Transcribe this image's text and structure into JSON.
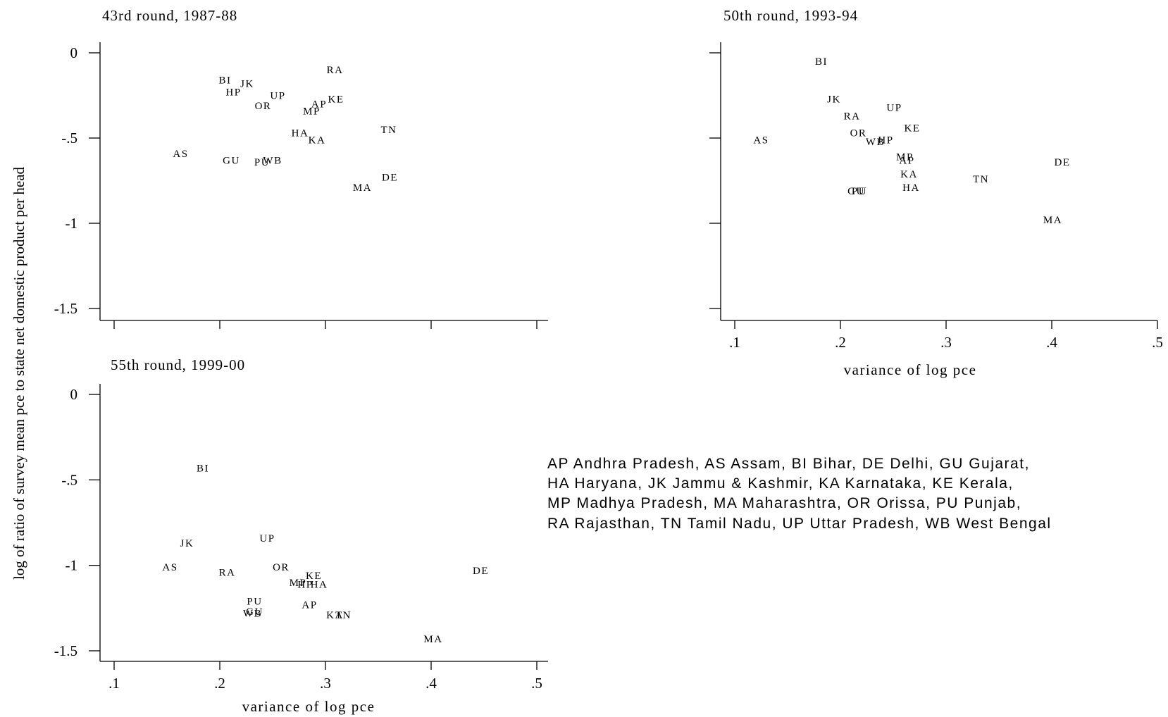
{
  "figure": {
    "ylabel": "log of ratio of survey mean pce to state net domestic product per head",
    "legend_lines": [
      "AP Andhra Pradesh, AS Assam, BI Bihar, DE Delhi, GU Gujarat,",
      "HA Haryana, JK Jammu & Kashmir, KA Karnataka, KE Kerala,",
      "MP Madhya Pradesh, MA Maharashtra, OR Orissa, PU Punjab,",
      "RA Rajasthan, TN Tamil Nadu, UP Uttar Pradesh, WB West Bengal"
    ]
  },
  "chart_data": [
    {
      "type": "scatter",
      "title": "43rd round, 1987-88",
      "xlabel": "",
      "xlim": [
        0.1,
        0.5
      ],
      "ylim": [
        -1.5,
        0
      ],
      "xticks": [
        0.1,
        0.2,
        0.3,
        0.4,
        0.5
      ],
      "xtick_labels": [],
      "yticks": [
        0,
        -0.5,
        -1,
        -1.5
      ],
      "ytick_labels": [
        "0",
        "-.5",
        "-1",
        "-1.5"
      ],
      "points": [
        {
          "label": "BI",
          "x": 0.205,
          "y": -0.16
        },
        {
          "label": "JK",
          "x": 0.226,
          "y": -0.18
        },
        {
          "label": "HP",
          "x": 0.213,
          "y": -0.23
        },
        {
          "label": "UP",
          "x": 0.255,
          "y": -0.25
        },
        {
          "label": "OR",
          "x": 0.241,
          "y": -0.31
        },
        {
          "label": "RA",
          "x": 0.309,
          "y": -0.1
        },
        {
          "label": "AP",
          "x": 0.294,
          "y": -0.3
        },
        {
          "label": "KE",
          "x": 0.31,
          "y": -0.27
        },
        {
          "label": "MP",
          "x": 0.287,
          "y": -0.34
        },
        {
          "label": "TN",
          "x": 0.36,
          "y": -0.45
        },
        {
          "label": "HA",
          "x": 0.276,
          "y": -0.47
        },
        {
          "label": "KA",
          "x": 0.292,
          "y": -0.51
        },
        {
          "label": "AS",
          "x": 0.163,
          "y": -0.59
        },
        {
          "label": "GU",
          "x": 0.211,
          "y": -0.63
        },
        {
          "label": "PU",
          "x": 0.24,
          "y": -0.64
        },
        {
          "label": "WB",
          "x": 0.25,
          "y": -0.63
        },
        {
          "label": "DE",
          "x": 0.361,
          "y": -0.73
        },
        {
          "label": "MA",
          "x": 0.335,
          "y": -0.79
        }
      ]
    },
    {
      "type": "scatter",
      "title": "50th round, 1993-94",
      "xlabel": "variance of log pce",
      "xlim": [
        0.1,
        0.5
      ],
      "ylim": [
        -1.5,
        0
      ],
      "xticks": [
        0.1,
        0.2,
        0.3,
        0.4,
        0.5
      ],
      "xtick_labels": [
        ".1",
        ".2",
        ".3",
        ".4",
        ".5"
      ],
      "yticks": [
        0,
        -0.5,
        -1,
        -1.5
      ],
      "ytick_labels": [],
      "points": [
        {
          "label": "BI",
          "x": 0.182,
          "y": -0.05
        },
        {
          "label": "JK",
          "x": 0.194,
          "y": -0.27
        },
        {
          "label": "UP",
          "x": 0.251,
          "y": -0.32
        },
        {
          "label": "RA",
          "x": 0.211,
          "y": -0.37
        },
        {
          "label": "KE",
          "x": 0.268,
          "y": -0.44
        },
        {
          "label": "OR",
          "x": 0.217,
          "y": -0.47
        },
        {
          "label": "HP",
          "x": 0.243,
          "y": -0.51
        },
        {
          "label": "WB",
          "x": 0.233,
          "y": -0.52
        },
        {
          "label": "AS",
          "x": 0.125,
          "y": -0.51
        },
        {
          "label": "MP",
          "x": 0.261,
          "y": -0.61
        },
        {
          "label": "AP",
          "x": 0.263,
          "y": -0.63
        },
        {
          "label": "DE",
          "x": 0.41,
          "y": -0.64
        },
        {
          "label": "KA",
          "x": 0.265,
          "y": -0.71
        },
        {
          "label": "TN",
          "x": 0.333,
          "y": -0.74
        },
        {
          "label": "HA",
          "x": 0.267,
          "y": -0.79
        },
        {
          "label": "GU",
          "x": 0.215,
          "y": -0.81
        },
        {
          "label": "PU",
          "x": 0.218,
          "y": -0.81
        },
        {
          "label": "MA",
          "x": 0.401,
          "y": -0.98
        }
      ]
    },
    {
      "type": "scatter",
      "title": "55th round, 1999-00",
      "xlabel": "variance of log pce",
      "xlim": [
        0.1,
        0.5
      ],
      "ylim": [
        -1.5,
        0
      ],
      "xticks": [
        0.1,
        0.2,
        0.3,
        0.4,
        0.5
      ],
      "xtick_labels": [
        ".1",
        ".2",
        ".3",
        ".4",
        ".5"
      ],
      "yticks": [
        0,
        -0.5,
        -1,
        -1.5
      ],
      "ytick_labels": [
        "0",
        "-.5",
        "-1",
        "-1.5"
      ],
      "points": [
        {
          "label": "BI",
          "x": 0.184,
          "y": -0.43
        },
        {
          "label": "UP",
          "x": 0.245,
          "y": -0.84
        },
        {
          "label": "JK",
          "x": 0.169,
          "y": -0.87
        },
        {
          "label": "AS",
          "x": 0.153,
          "y": -1.01
        },
        {
          "label": "OR",
          "x": 0.258,
          "y": -1.01
        },
        {
          "label": "RA",
          "x": 0.207,
          "y": -1.04
        },
        {
          "label": "KE",
          "x": 0.289,
          "y": -1.06
        },
        {
          "label": "MP",
          "x": 0.274,
          "y": -1.1
        },
        {
          "label": "HP",
          "x": 0.281,
          "y": -1.11
        },
        {
          "label": "HA",
          "x": 0.294,
          "y": -1.11
        },
        {
          "label": "AP",
          "x": 0.285,
          "y": -1.23
        },
        {
          "label": "PU",
          "x": 0.233,
          "y": -1.21
        },
        {
          "label": "GU",
          "x": 0.233,
          "y": -1.27
        },
        {
          "label": "WB",
          "x": 0.231,
          "y": -1.28
        },
        {
          "label": "KA",
          "x": 0.309,
          "y": -1.29
        },
        {
          "label": "TN",
          "x": 0.317,
          "y": -1.29
        },
        {
          "label": "DE",
          "x": 0.447,
          "y": -1.03
        },
        {
          "label": "MA",
          "x": 0.402,
          "y": -1.43
        }
      ]
    }
  ]
}
